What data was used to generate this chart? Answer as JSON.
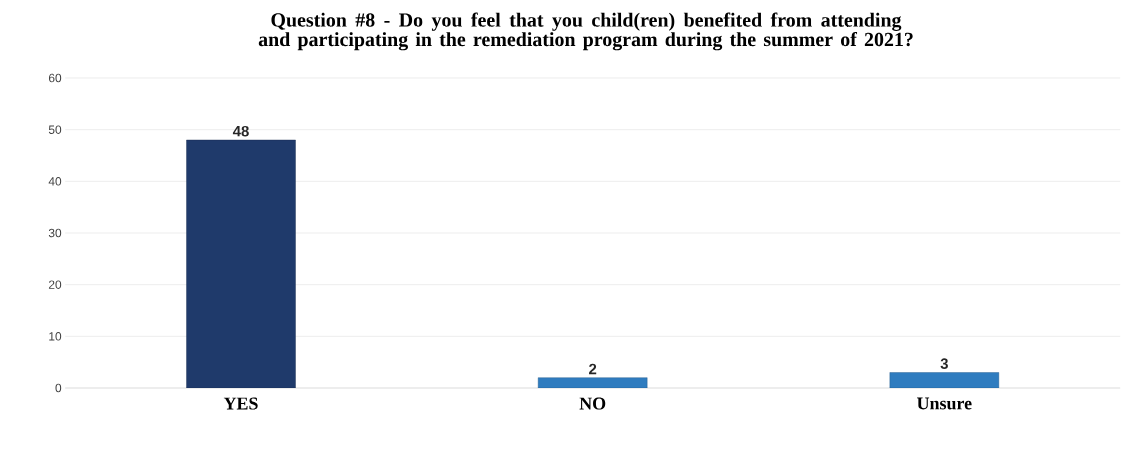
{
  "chart_data": {
    "type": "bar",
    "title": "Question #8 - Do you feel that you child(ren) benefited from attending and participating in the remediation program during the summer of 2021?",
    "categories": [
      "YES",
      "NO",
      "Unsure"
    ],
    "values": [
      48,
      2,
      3
    ],
    "colors": [
      "#1f3a6b",
      "#2f7cbf",
      "#2f7cbf"
    ],
    "ylim": [
      0,
      60
    ],
    "yticks": [
      0,
      10,
      20,
      30,
      40,
      50,
      60
    ],
    "grid": "y",
    "data_labels": true
  }
}
